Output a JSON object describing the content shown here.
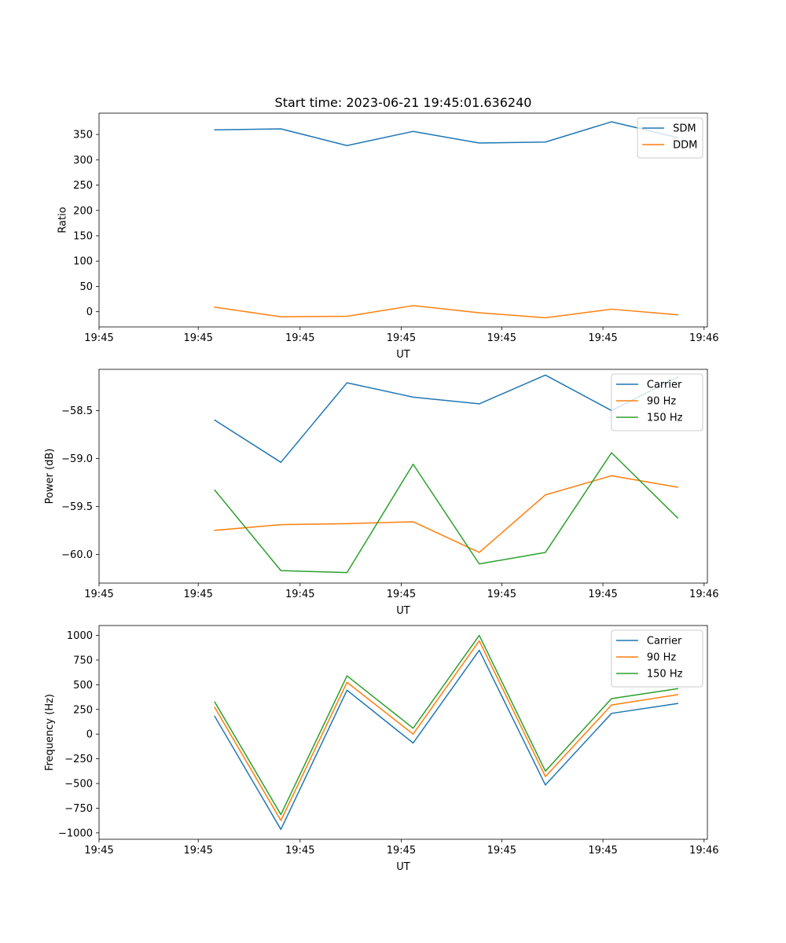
{
  "figure_title": "Start time: 2023-06-21 19:45:01.636240",
  "chart_data": [
    {
      "type": "line",
      "title": "Start time: 2023-06-21 19:45:01.636240",
      "xlabel": "UT",
      "ylabel": "Ratio",
      "x": [
        1,
        2,
        3,
        4,
        5,
        6,
        7,
        8
      ],
      "xlim": [
        -0.75,
        8.45
      ],
      "ylim": [
        -30,
        392
      ],
      "xtick_positions": [
        -0.75,
        0.75,
        2.29,
        3.82,
        5.34,
        6.87,
        8.4
      ],
      "xtick_labels": [
        "19:45",
        "19:45",
        "19:45",
        "19:45",
        "19:45",
        "19:45",
        "19:46"
      ],
      "yticks": [
        0,
        50,
        100,
        150,
        200,
        250,
        300,
        350
      ],
      "ytick_labels": [
        "0",
        "50",
        "100",
        "150",
        "200",
        "250",
        "300",
        "350"
      ],
      "legend_position": "top-right",
      "grid": false,
      "series": [
        {
          "name": "SDM",
          "color": "#1f77b4",
          "values": [
            359,
            361,
            328,
            356,
            333,
            335,
            375,
            344
          ]
        },
        {
          "name": "DDM",
          "color": "#ff7f0e",
          "values": [
            9,
            -10,
            -9,
            12,
            -2,
            -12,
            5,
            -6
          ]
        }
      ]
    },
    {
      "type": "line",
      "title": "",
      "xlabel": "UT",
      "ylabel": "Power (dB)",
      "x": [
        1,
        2,
        3,
        4,
        5,
        6,
        7,
        8
      ],
      "xlim": [
        -0.75,
        8.45
      ],
      "ylim": [
        -60.3,
        -58.07
      ],
      "xtick_positions": [
        -0.75,
        0.75,
        2.29,
        3.82,
        5.34,
        6.87,
        8.4
      ],
      "xtick_labels": [
        "19:45",
        "19:45",
        "19:45",
        "19:45",
        "19:45",
        "19:45",
        "19:46"
      ],
      "yticks": [
        -60.0,
        -59.5,
        -59.0,
        -58.5
      ],
      "ytick_labels": [
        "−60.0",
        "−59.5",
        "−59.0",
        "−58.5"
      ],
      "legend_position": "top-right",
      "grid": false,
      "series": [
        {
          "name": "Carrier",
          "color": "#1f77b4",
          "values": [
            -58.6,
            -59.04,
            -58.21,
            -58.36,
            -58.43,
            -58.13,
            -58.5,
            -58.15
          ]
        },
        {
          "name": "90 Hz",
          "color": "#ff7f0e",
          "values": [
            -59.75,
            -59.69,
            -59.68,
            -59.66,
            -59.98,
            -59.38,
            -59.18,
            -59.3
          ]
        },
        {
          "name": "150 Hz",
          "color": "#2ca02c",
          "values": [
            -59.33,
            -60.17,
            -60.19,
            -59.06,
            -60.1,
            -59.98,
            -58.94,
            -59.62
          ]
        }
      ]
    },
    {
      "type": "line",
      "title": "",
      "xlabel": "UT",
      "ylabel": "Frequency (Hz)",
      "x": [
        1,
        2,
        3,
        4,
        5,
        6,
        7,
        8
      ],
      "xlim": [
        -0.75,
        8.45
      ],
      "ylim": [
        -1065,
        1100
      ],
      "xtick_positions": [
        -0.75,
        0.75,
        2.29,
        3.82,
        5.34,
        6.87,
        8.4
      ],
      "xtick_labels": [
        "19:45",
        "19:45",
        "19:45",
        "19:45",
        "19:45",
        "19:45",
        "19:46"
      ],
      "yticks": [
        -1000,
        -750,
        -500,
        -250,
        0,
        250,
        500,
        750,
        1000
      ],
      "ytick_labels": [
        "−1000",
        "−750",
        "−500",
        "−250",
        "0",
        "250",
        "500",
        "750",
        "1000"
      ],
      "legend_position": "top-right",
      "grid": false,
      "series": [
        {
          "name": "Carrier",
          "color": "#1f77b4",
          "values": [
            180,
            -965,
            445,
            -90,
            850,
            -515,
            210,
            310
          ]
        },
        {
          "name": "90 Hz",
          "color": "#ff7f0e",
          "values": [
            270,
            -875,
            525,
            0,
            945,
            -430,
            295,
            400
          ]
        },
        {
          "name": "150 Hz",
          "color": "#2ca02c",
          "values": [
            325,
            -815,
            590,
            60,
            1000,
            -375,
            360,
            460
          ]
        }
      ]
    }
  ]
}
